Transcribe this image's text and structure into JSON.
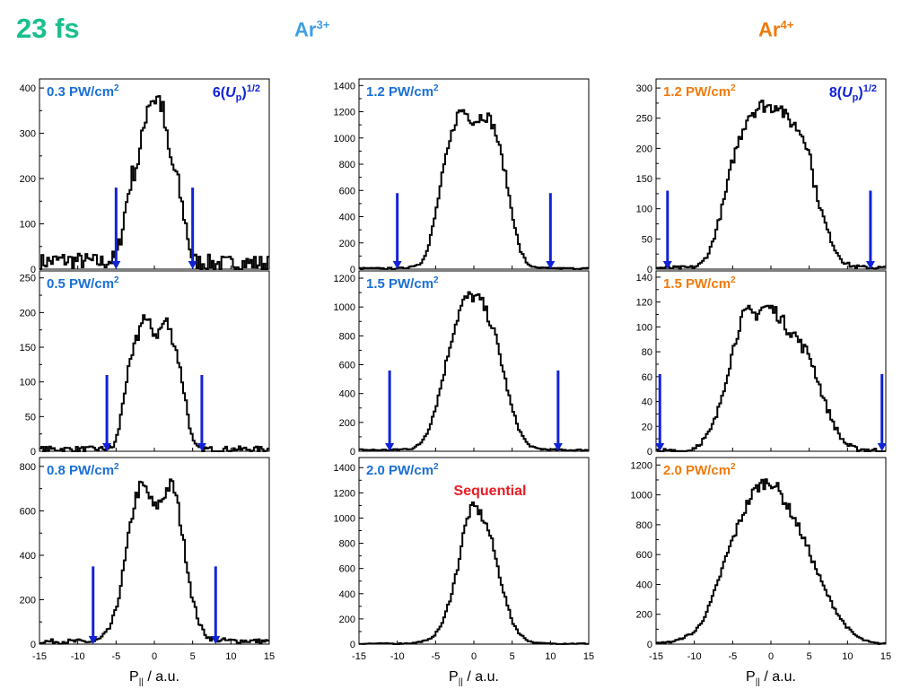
{
  "header": {
    "pulse": "23 fs",
    "ar3": {
      "base": "Ar",
      "sup": "3+"
    },
    "ar4": {
      "base": "Ar",
      "sup": "4+"
    }
  },
  "colors": {
    "pulse": "#19c08e",
    "ar3": "#3d9fe6",
    "ar4": "#f07a0c",
    "trace": "#000000",
    "arrow": "#1123d6",
    "sequential": "#e81c24"
  },
  "xaxis": {
    "label_base": "P",
    "label_sub": "||",
    "label_unit": " / a.u.",
    "ticks": [
      -15,
      -10,
      -5,
      0,
      5,
      10,
      15
    ],
    "xlim": [
      -15,
      15
    ]
  },
  "chart_data": [
    {
      "type": "line",
      "column": 0,
      "row": 0,
      "title": "0.3 PW/cm",
      "title_sup": "2",
      "title_color": "#1a6fd6",
      "annotation": {
        "pre": "6(",
        "var": "U",
        "sub": "p",
        "post": ")",
        "sup": "1/2"
      },
      "ylim": [
        0,
        420
      ],
      "yticks": [
        0,
        100,
        200,
        300,
        400
      ],
      "arrows": {
        "x": [
          -5,
          5
        ],
        "top": 180
      },
      "baseline_noise": 18,
      "profile": [
        [
          -15,
          15
        ],
        [
          -12,
          20
        ],
        [
          -9,
          18
        ],
        [
          -7,
          15
        ],
        [
          -6,
          18
        ],
        [
          -5,
          25
        ],
        [
          -4.5,
          60
        ],
        [
          -4,
          110
        ],
        [
          -3.5,
          160
        ],
        [
          -3,
          200
        ],
        [
          -2.5,
          225
        ],
        [
          -2,
          245
        ],
        [
          -1.5,
          295
        ],
        [
          -1,
          360
        ],
        [
          -0.5,
          380
        ],
        [
          0,
          375
        ],
        [
          0.5,
          380
        ],
        [
          1,
          360
        ],
        [
          1.5,
          300
        ],
        [
          2,
          245
        ],
        [
          2.5,
          225
        ],
        [
          3,
          200
        ],
        [
          3.5,
          150
        ],
        [
          4,
          110
        ],
        [
          4.5,
          60
        ],
        [
          5,
          20
        ],
        [
          6,
          15
        ],
        [
          9,
          12
        ],
        [
          12,
          14
        ],
        [
          15,
          12
        ]
      ]
    },
    {
      "type": "line",
      "column": 0,
      "row": 1,
      "title": "0.5 PW/cm",
      "title_sup": "2",
      "title_color": "#1a6fd6",
      "ylim": [
        0,
        260
      ],
      "yticks": [
        0,
        50,
        100,
        150,
        200,
        250
      ],
      "arrows": {
        "x": [
          -6.2,
          6.2
        ],
        "top": 110
      },
      "baseline_noise": 4,
      "profile": [
        [
          -15,
          3
        ],
        [
          -10,
          3
        ],
        [
          -7,
          3
        ],
        [
          -5.5,
          5
        ],
        [
          -5,
          15
        ],
        [
          -4.5,
          40
        ],
        [
          -4,
          80
        ],
        [
          -3.5,
          110
        ],
        [
          -3,
          130
        ],
        [
          -2.5,
          155
        ],
        [
          -2,
          170
        ],
        [
          -1.5,
          200
        ],
        [
          -1,
          185
        ],
        [
          -0.5,
          180
        ],
        [
          0,
          170
        ],
        [
          0.5,
          170
        ],
        [
          1,
          180
        ],
        [
          1.5,
          190
        ],
        [
          2,
          175
        ],
        [
          2.5,
          160
        ],
        [
          3,
          140
        ],
        [
          3.5,
          110
        ],
        [
          4,
          80
        ],
        [
          4.5,
          45
        ],
        [
          5,
          15
        ],
        [
          5.5,
          5
        ],
        [
          7,
          3
        ],
        [
          10,
          3
        ],
        [
          15,
          3
        ]
      ]
    },
    {
      "type": "line",
      "column": 0,
      "row": 2,
      "title": "0.8 PW/cm",
      "title_sup": "2",
      "title_color": "#1a6fd6",
      "ylim": [
        0,
        840
      ],
      "yticks": [
        0,
        200,
        400,
        600,
        800
      ],
      "arrows": {
        "x": [
          -8,
          8
        ],
        "top": 350
      },
      "baseline_noise": 10,
      "profile": [
        [
          -15,
          12
        ],
        [
          -12,
          12
        ],
        [
          -9,
          12
        ],
        [
          -8,
          10
        ],
        [
          -7,
          25
        ],
        [
          -6,
          60
        ],
        [
          -5,
          150
        ],
        [
          -4,
          340
        ],
        [
          -3,
          560
        ],
        [
          -2.5,
          650
        ],
        [
          -2,
          700
        ],
        [
          -1.5,
          710
        ],
        [
          -1,
          690
        ],
        [
          -0.5,
          650
        ],
        [
          0,
          610
        ],
        [
          0.5,
          630
        ],
        [
          1,
          650
        ],
        [
          1.5,
          690
        ],
        [
          2,
          715
        ],
        [
          2.5,
          710
        ],
        [
          3,
          640
        ],
        [
          3.5,
          530
        ],
        [
          4,
          420
        ],
        [
          5,
          200
        ],
        [
          6,
          80
        ],
        [
          7,
          30
        ],
        [
          8,
          20
        ],
        [
          10,
          15
        ],
        [
          12,
          15
        ],
        [
          15,
          12
        ]
      ]
    },
    {
      "type": "line",
      "column": 1,
      "row": 0,
      "title": "1.2 PW/cm",
      "title_sup": "2",
      "title_color": "#1a6fd6",
      "ylim": [
        0,
        1450
      ],
      "yticks": [
        0,
        200,
        400,
        600,
        800,
        1000,
        1200,
        1400
      ],
      "arrows": {
        "x": [
          -10,
          10
        ],
        "top": 580
      },
      "baseline_noise": 6,
      "profile": [
        [
          -15,
          5
        ],
        [
          -11,
          5
        ],
        [
          -9,
          8
        ],
        [
          -7,
          40
        ],
        [
          -6,
          150
        ],
        [
          -5,
          420
        ],
        [
          -4,
          750
        ],
        [
          -3,
          1000
        ],
        [
          -2.5,
          1120
        ],
        [
          -2,
          1190
        ],
        [
          -1.5,
          1215
        ],
        [
          -1,
          1190
        ],
        [
          -0.5,
          1160
        ],
        [
          0,
          1130
        ],
        [
          0.5,
          1140
        ],
        [
          1,
          1170
        ],
        [
          1.5,
          1175
        ],
        [
          2,
          1150
        ],
        [
          2.5,
          1100
        ],
        [
          3,
          1010
        ],
        [
          4,
          760
        ],
        [
          5,
          430
        ],
        [
          6,
          150
        ],
        [
          7,
          40
        ],
        [
          8,
          10
        ],
        [
          11,
          5
        ],
        [
          15,
          5
        ]
      ]
    },
    {
      "type": "line",
      "column": 1,
      "row": 1,
      "title": "1.5 PW/cm",
      "title_sup": "2",
      "title_color": "#1a6fd6",
      "ylim": [
        0,
        1250
      ],
      "yticks": [
        0,
        200,
        400,
        600,
        800,
        1000,
        1200
      ],
      "arrows": {
        "x": [
          -11,
          11
        ],
        "top": 560
      },
      "baseline_noise": 6,
      "profile": [
        [
          -15,
          10
        ],
        [
          -12,
          8
        ],
        [
          -10,
          10
        ],
        [
          -8,
          20
        ],
        [
          -7,
          50
        ],
        [
          -6,
          140
        ],
        [
          -5,
          300
        ],
        [
          -4,
          520
        ],
        [
          -3,
          760
        ],
        [
          -2.5,
          860
        ],
        [
          -2,
          950
        ],
        [
          -1.5,
          1020
        ],
        [
          -1,
          1060
        ],
        [
          -0.5,
          1075
        ],
        [
          0,
          1070
        ],
        [
          0.5,
          1060
        ],
        [
          1,
          1040
        ],
        [
          1.5,
          980
        ],
        [
          2,
          920
        ],
        [
          2.5,
          850
        ],
        [
          3,
          760
        ],
        [
          4,
          520
        ],
        [
          5,
          290
        ],
        [
          6,
          140
        ],
        [
          7,
          50
        ],
        [
          8,
          20
        ],
        [
          10,
          10
        ],
        [
          12,
          8
        ],
        [
          15,
          8
        ]
      ]
    },
    {
      "type": "line",
      "column": 1,
      "row": 2,
      "title": "2.0 PW/cm",
      "title_sup": "2",
      "title_color": "#1a6fd6",
      "annotation_label": "Sequential",
      "ylim": [
        0,
        1480
      ],
      "yticks": [
        0,
        200,
        400,
        600,
        800,
        1000,
        1200,
        1400
      ],
      "baseline_noise": 4,
      "profile": [
        [
          -15,
          4
        ],
        [
          -10,
          4
        ],
        [
          -8,
          8
        ],
        [
          -6,
          30
        ],
        [
          -5,
          80
        ],
        [
          -4,
          180
        ],
        [
          -3,
          380
        ],
        [
          -2,
          640
        ],
        [
          -1.5,
          830
        ],
        [
          -1,
          960
        ],
        [
          -0.5,
          1060
        ],
        [
          0,
          1090
        ],
        [
          0.5,
          1070
        ],
        [
          1,
          1020
        ],
        [
          1.5,
          960
        ],
        [
          2,
          890
        ],
        [
          2.5,
          780
        ],
        [
          3,
          640
        ],
        [
          4,
          390
        ],
        [
          5,
          180
        ],
        [
          6,
          80
        ],
        [
          7,
          30
        ],
        [
          8,
          10
        ],
        [
          10,
          4
        ],
        [
          15,
          4
        ]
      ]
    },
    {
      "type": "line",
      "column": 2,
      "row": 0,
      "title": "1.2 PW/cm",
      "title_sup": "2",
      "title_color": "#f07a0c",
      "annotation": {
        "pre": "8(",
        "var": "U",
        "sub": "p",
        "post": ")",
        "sup": "1/2"
      },
      "ylim": [
        0,
        315
      ],
      "yticks": [
        0,
        50,
        100,
        150,
        200,
        250,
        300
      ],
      "arrows": {
        "x": [
          -13.5,
          13
        ],
        "top": 130
      },
      "baseline_noise": 3,
      "profile": [
        [
          -15,
          2
        ],
        [
          -12,
          2
        ],
        [
          -10,
          3
        ],
        [
          -9,
          10
        ],
        [
          -8,
          30
        ],
        [
          -7,
          70
        ],
        [
          -6,
          120
        ],
        [
          -5,
          180
        ],
        [
          -4,
          220
        ],
        [
          -3,
          255
        ],
        [
          -2,
          265
        ],
        [
          -1,
          272
        ],
        [
          0,
          268
        ],
        [
          1,
          275
        ],
        [
          2,
          250
        ],
        [
          3,
          240
        ],
        [
          4,
          225
        ],
        [
          5,
          200
        ],
        [
          5.5,
          150
        ],
        [
          6.5,
          100
        ],
        [
          7.5,
          60
        ],
        [
          8.5,
          30
        ],
        [
          9.5,
          12
        ],
        [
          10.5,
          5
        ],
        [
          12,
          3
        ],
        [
          15,
          2
        ]
      ]
    },
    {
      "type": "line",
      "column": 2,
      "row": 1,
      "title": "1.5 PW/cm",
      "title_sup": "2",
      "title_color": "#f07a0c",
      "ylim": [
        0,
        145
      ],
      "yticks": [
        0,
        20,
        40,
        60,
        80,
        100,
        120,
        140
      ],
      "arrows": {
        "x": [
          -14.5,
          14.5
        ],
        "top": 62
      },
      "baseline_noise": 2,
      "profile": [
        [
          -15,
          0
        ],
        [
          -11,
          0
        ],
        [
          -10,
          3
        ],
        [
          -9,
          8
        ],
        [
          -8,
          15
        ],
        [
          -7,
          30
        ],
        [
          -6,
          55
        ],
        [
          -5,
          80
        ],
        [
          -4,
          105
        ],
        [
          -3,
          112
        ],
        [
          -2,
          110
        ],
        [
          -1,
          116
        ],
        [
          0,
          115
        ],
        [
          1,
          110
        ],
        [
          2,
          100
        ],
        [
          3,
          95
        ],
        [
          4,
          85
        ],
        [
          5,
          78
        ],
        [
          6,
          60
        ],
        [
          7,
          40
        ],
        [
          8,
          25
        ],
        [
          9,
          12
        ],
        [
          10,
          5
        ],
        [
          11,
          2
        ],
        [
          15,
          0
        ]
      ]
    },
    {
      "type": "line",
      "column": 2,
      "row": 2,
      "title": "2.0 PW/cm",
      "title_sup": "2",
      "title_color": "#f07a0c",
      "ylim": [
        0,
        1250
      ],
      "yticks": [
        0,
        200,
        400,
        600,
        800,
        1000,
        1200
      ],
      "baseline_noise": 5,
      "profile": [
        [
          -15,
          5
        ],
        [
          -13,
          15
        ],
        [
          -12,
          30
        ],
        [
          -10,
          80
        ],
        [
          -9,
          150
        ],
        [
          -8,
          260
        ],
        [
          -7,
          400
        ],
        [
          -6,
          560
        ],
        [
          -5,
          700
        ],
        [
          -4,
          830
        ],
        [
          -3,
          950
        ],
        [
          -2,
          1040
        ],
        [
          -1,
          1080
        ],
        [
          0,
          1090
        ],
        [
          0.5,
          1070
        ],
        [
          1,
          1030
        ],
        [
          2,
          940
        ],
        [
          3,
          850
        ],
        [
          4,
          740
        ],
        [
          5,
          620
        ],
        [
          6,
          490
        ],
        [
          7,
          370
        ],
        [
          8,
          270
        ],
        [
          9,
          180
        ],
        [
          10,
          110
        ],
        [
          11,
          60
        ],
        [
          12,
          30
        ],
        [
          13,
          12
        ],
        [
          14,
          5
        ],
        [
          15,
          3
        ]
      ]
    }
  ]
}
